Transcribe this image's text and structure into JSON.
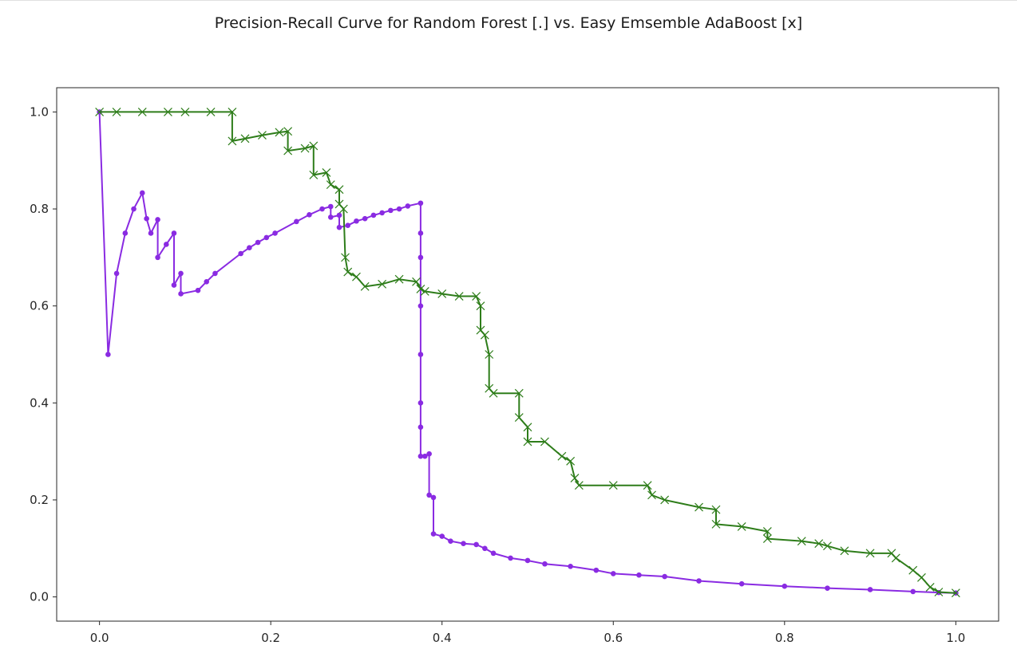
{
  "chart_data": {
    "type": "line",
    "title": "Precision-Recall Curve for Random Forest [.] vs. Easy Emsemble AdaBoost [x]",
    "xlabel": "",
    "ylabel": "",
    "xlim": [
      -0.05,
      1.05
    ],
    "ylim": [
      -0.05,
      1.05
    ],
    "xticks": [
      0.0,
      0.2,
      0.4,
      0.6,
      0.8,
      1.0
    ],
    "xtick_labels": [
      "0.0",
      "0.2",
      "0.4",
      "0.6",
      "0.8",
      "1.0"
    ],
    "yticks": [
      0.0,
      0.2,
      0.4,
      0.6,
      0.8,
      1.0
    ],
    "ytick_labels": [
      "0.0",
      "0.2",
      "0.4",
      "0.6",
      "0.8",
      "1.0"
    ],
    "grid": false,
    "series": [
      {
        "color": "#8a2be2",
        "marker": "dot",
        "points": [
          [
            0.0,
            1.0
          ],
          [
            0.01,
            0.5
          ],
          [
            0.02,
            0.667
          ],
          [
            0.03,
            0.75
          ],
          [
            0.04,
            0.8
          ],
          [
            0.05,
            0.833
          ],
          [
            0.055,
            0.78
          ],
          [
            0.06,
            0.75
          ],
          [
            0.068,
            0.778
          ],
          [
            0.068,
            0.7
          ],
          [
            0.078,
            0.727
          ],
          [
            0.087,
            0.75
          ],
          [
            0.087,
            0.643
          ],
          [
            0.095,
            0.667
          ],
          [
            0.095,
            0.625
          ],
          [
            0.115,
            0.632
          ],
          [
            0.125,
            0.65
          ],
          [
            0.135,
            0.667
          ],
          [
            0.165,
            0.708
          ],
          [
            0.175,
            0.72
          ],
          [
            0.185,
            0.731
          ],
          [
            0.195,
            0.741
          ],
          [
            0.205,
            0.75
          ],
          [
            0.23,
            0.774
          ],
          [
            0.245,
            0.788
          ],
          [
            0.26,
            0.8
          ],
          [
            0.27,
            0.805
          ],
          [
            0.27,
            0.783
          ],
          [
            0.28,
            0.787
          ],
          [
            0.28,
            0.762
          ],
          [
            0.29,
            0.766
          ],
          [
            0.3,
            0.775
          ],
          [
            0.31,
            0.78
          ],
          [
            0.32,
            0.787
          ],
          [
            0.33,
            0.792
          ],
          [
            0.34,
            0.797
          ],
          [
            0.35,
            0.8
          ],
          [
            0.36,
            0.806
          ],
          [
            0.375,
            0.812
          ],
          [
            0.375,
            0.75
          ],
          [
            0.375,
            0.7
          ],
          [
            0.375,
            0.6
          ],
          [
            0.375,
            0.5
          ],
          [
            0.375,
            0.4
          ],
          [
            0.375,
            0.35
          ],
          [
            0.375,
            0.29
          ],
          [
            0.38,
            0.29
          ],
          [
            0.385,
            0.295
          ],
          [
            0.385,
            0.21
          ],
          [
            0.39,
            0.205
          ],
          [
            0.39,
            0.13
          ],
          [
            0.4,
            0.125
          ],
          [
            0.41,
            0.115
          ],
          [
            0.425,
            0.11
          ],
          [
            0.44,
            0.108
          ],
          [
            0.45,
            0.1
          ],
          [
            0.46,
            0.09
          ],
          [
            0.48,
            0.08
          ],
          [
            0.5,
            0.075
          ],
          [
            0.52,
            0.068
          ],
          [
            0.55,
            0.063
          ],
          [
            0.58,
            0.055
          ],
          [
            0.6,
            0.048
          ],
          [
            0.63,
            0.045
          ],
          [
            0.66,
            0.042
          ],
          [
            0.7,
            0.033
          ],
          [
            0.75,
            0.027
          ],
          [
            0.8,
            0.022
          ],
          [
            0.85,
            0.018
          ],
          [
            0.9,
            0.015
          ],
          [
            0.95,
            0.011
          ],
          [
            0.98,
            0.009
          ],
          [
            1.0,
            0.008
          ]
        ]
      },
      {
        "color": "#2e7d1a",
        "marker": "x",
        "points": [
          [
            0.0,
            1.0
          ],
          [
            0.02,
            1.0
          ],
          [
            0.05,
            1.0
          ],
          [
            0.08,
            1.0
          ],
          [
            0.1,
            1.0
          ],
          [
            0.13,
            1.0
          ],
          [
            0.155,
            1.0
          ],
          [
            0.155,
            0.94
          ],
          [
            0.17,
            0.945
          ],
          [
            0.19,
            0.952
          ],
          [
            0.21,
            0.958
          ],
          [
            0.22,
            0.96
          ],
          [
            0.22,
            0.92
          ],
          [
            0.24,
            0.925
          ],
          [
            0.25,
            0.93
          ],
          [
            0.25,
            0.87
          ],
          [
            0.265,
            0.875
          ],
          [
            0.27,
            0.85
          ],
          [
            0.28,
            0.84
          ],
          [
            0.28,
            0.81
          ],
          [
            0.285,
            0.8
          ],
          [
            0.287,
            0.7
          ],
          [
            0.29,
            0.67
          ],
          [
            0.3,
            0.66
          ],
          [
            0.31,
            0.64
          ],
          [
            0.33,
            0.645
          ],
          [
            0.35,
            0.655
          ],
          [
            0.37,
            0.65
          ],
          [
            0.375,
            0.635
          ],
          [
            0.38,
            0.63
          ],
          [
            0.4,
            0.625
          ],
          [
            0.42,
            0.62
          ],
          [
            0.44,
            0.62
          ],
          [
            0.445,
            0.6
          ],
          [
            0.445,
            0.55
          ],
          [
            0.45,
            0.54
          ],
          [
            0.455,
            0.5
          ],
          [
            0.455,
            0.43
          ],
          [
            0.46,
            0.42
          ],
          [
            0.49,
            0.42
          ],
          [
            0.49,
            0.37
          ],
          [
            0.5,
            0.35
          ],
          [
            0.5,
            0.32
          ],
          [
            0.52,
            0.32
          ],
          [
            0.54,
            0.29
          ],
          [
            0.55,
            0.28
          ],
          [
            0.555,
            0.245
          ],
          [
            0.56,
            0.23
          ],
          [
            0.6,
            0.23
          ],
          [
            0.64,
            0.23
          ],
          [
            0.645,
            0.21
          ],
          [
            0.66,
            0.2
          ],
          [
            0.7,
            0.185
          ],
          [
            0.72,
            0.18
          ],
          [
            0.72,
            0.15
          ],
          [
            0.75,
            0.145
          ],
          [
            0.78,
            0.135
          ],
          [
            0.78,
            0.12
          ],
          [
            0.82,
            0.115
          ],
          [
            0.84,
            0.11
          ],
          [
            0.85,
            0.105
          ],
          [
            0.87,
            0.095
          ],
          [
            0.9,
            0.09
          ],
          [
            0.925,
            0.09
          ],
          [
            0.93,
            0.08
          ],
          [
            0.95,
            0.055
          ],
          [
            0.96,
            0.04
          ],
          [
            0.97,
            0.02
          ],
          [
            0.98,
            0.01
          ],
          [
            1.0,
            0.008
          ]
        ]
      }
    ]
  }
}
